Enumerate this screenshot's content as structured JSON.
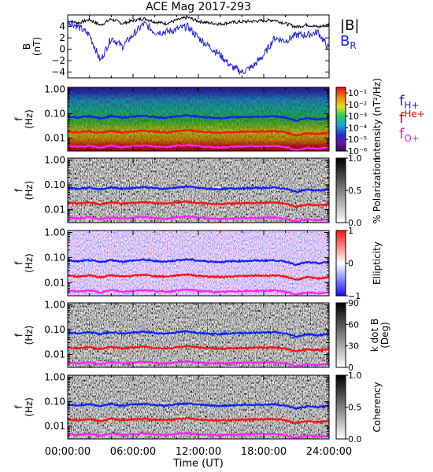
{
  "title": "ACE Mag 2017-293",
  "time_axis": {
    "label": "Time (UT)",
    "range_hours": [
      0,
      24
    ],
    "ticks": [
      {
        "value": 0,
        "label": "00:00:00"
      },
      {
        "value": 6,
        "label": "06:00:00"
      },
      {
        "value": 12,
        "label": "12:00:00"
      },
      {
        "value": 18,
        "label": "18:00:00"
      },
      {
        "value": 24,
        "label": "24:00:00"
      }
    ]
  },
  "legends": {
    "field": [
      {
        "label": "|B|",
        "color": "#000000"
      },
      {
        "label": "B",
        "sub": "R",
        "color": "#2020e0"
      }
    ],
    "freq": [
      {
        "label": "f",
        "sub": "H+",
        "color": "#2020e0"
      },
      {
        "label": "f",
        "sup": "He+",
        "color": "#e00000"
      },
      {
        "label": "f",
        "sub": "O+",
        "color": "#e020e0"
      }
    ]
  },
  "colors": {
    "gyro_h": "#1020ff",
    "gyro_he": "#ff1010",
    "gyro_o": "#ff20ff",
    "b_mag": "#000000",
    "b_r": "#2020e0"
  },
  "chart_data": [
    {
      "type": "line",
      "panel": "B",
      "ylabel_lines": [
        "B",
        "(nT)"
      ],
      "ylim": [
        -5,
        6
      ],
      "yticks": [
        {
          "value": -4,
          "label": "−4"
        },
        {
          "value": -2,
          "label": "−2"
        },
        {
          "value": 0,
          "label": "0"
        },
        {
          "value": 2,
          "label": "2"
        },
        {
          "value": 4,
          "label": "4"
        }
      ],
      "x": [
        0,
        1,
        2,
        3,
        4,
        5,
        6,
        7,
        8,
        9,
        10,
        11,
        12,
        13,
        14,
        15,
        16,
        17,
        18,
        19,
        20,
        21,
        22,
        23,
        24
      ],
      "series": [
        {
          "name": "|B|",
          "color": "#000000",
          "values": [
            5.0,
            4.6,
            5.2,
            4.2,
            5.3,
            4.5,
            5.0,
            5.4,
            4.8,
            4.5,
            5.1,
            5.6,
            4.9,
            4.6,
            4.4,
            4.7,
            4.8,
            4.9,
            5.0,
            5.1,
            4.5,
            3.9,
            4.3,
            3.9,
            4.3
          ]
        },
        {
          "name": "B",
          "name_sub": "R",
          "color": "#2020e0",
          "values": [
            4.8,
            3.9,
            2.5,
            -2.0,
            2.0,
            0.5,
            2.5,
            4.5,
            3.0,
            3.0,
            3.5,
            4.0,
            2.0,
            0.5,
            -1.0,
            -3.0,
            -4.0,
            -3.0,
            -1.0,
            2.0,
            1.5,
            2.5,
            2.5,
            3.0,
            0.0
          ]
        }
      ]
    },
    {
      "type": "heatmap",
      "panel": "Intensity spectrogram",
      "ylabel_lines": [
        "f",
        "(Hz)"
      ],
      "yscale": "log",
      "ylim": [
        0.003,
        1.2
      ],
      "yticks": [
        {
          "value": 0.01,
          "label": "0.01"
        },
        {
          "value": 0.1,
          "label": "0.10"
        },
        {
          "value": 1,
          "label": "1.00"
        }
      ],
      "colorbar": {
        "label": "Intensity (nT²/Hz)",
        "scale": "log",
        "range": [
          1e-06,
          0.3
        ],
        "ticks": [
          {
            "value": 0.1,
            "label": "10⁻¹"
          },
          {
            "value": 0.01,
            "label": "10⁻²"
          },
          {
            "value": 0.001,
            "label": "10⁻³"
          },
          {
            "value": 0.0001,
            "label": "10⁻⁴"
          },
          {
            "value": 1e-05,
            "label": "10⁻⁵"
          },
          {
            "value": 1e-06,
            "label": "10⁻⁶"
          }
        ],
        "colormap": "rainbow"
      }
    },
    {
      "type": "heatmap",
      "panel": "% Polarization",
      "ylabel_lines": [
        "f",
        "(Hz)"
      ],
      "yscale": "log",
      "ylim": [
        0.003,
        1.2
      ],
      "yticks": [
        {
          "value": 0.01,
          "label": "0.01"
        },
        {
          "value": 0.1,
          "label": "0.10"
        },
        {
          "value": 1,
          "label": "1.00"
        }
      ],
      "colorbar": {
        "label": "% Polarization",
        "range": [
          0,
          1
        ],
        "ticks": [
          {
            "value": 0,
            "label": "0.0"
          },
          {
            "value": 0.5,
            "label": "0.5"
          },
          {
            "value": 1,
            "label": "1.0"
          }
        ],
        "colormap": "gray_reversed"
      }
    },
    {
      "type": "heatmap",
      "panel": "Ellipticity",
      "ylabel_lines": [
        "f",
        "(Hz)"
      ],
      "yscale": "log",
      "ylim": [
        0.003,
        1.2
      ],
      "yticks": [
        {
          "value": 0.01,
          "label": "0.01"
        },
        {
          "value": 0.1,
          "label": "0.10"
        },
        {
          "value": 1,
          "label": "1.00"
        }
      ],
      "colorbar": {
        "label": "Ellipticity",
        "range": [
          -1,
          1
        ],
        "ticks": [
          {
            "value": -1,
            "label": "−1"
          },
          {
            "value": 0,
            "label": "0"
          },
          {
            "value": 1,
            "label": "1"
          }
        ],
        "colormap": "blue_white_red"
      }
    },
    {
      "type": "heatmap",
      "panel": "k dot B",
      "ylabel_lines": [
        "f",
        "(Hz)"
      ],
      "yscale": "log",
      "ylim": [
        0.003,
        1.2
      ],
      "yticks": [
        {
          "value": 0.01,
          "label": "0.01"
        },
        {
          "value": 0.1,
          "label": "0.10"
        },
        {
          "value": 1,
          "label": "1.00"
        }
      ],
      "colorbar": {
        "label_lines": [
          "k dot B",
          "(Deg)"
        ],
        "range": [
          0,
          90
        ],
        "ticks": [
          {
            "value": 0,
            "label": "0"
          },
          {
            "value": 30,
            "label": "30"
          },
          {
            "value": 60,
            "label": "60"
          },
          {
            "value": 90,
            "label": "90"
          }
        ],
        "colormap": "gray_reversed"
      }
    },
    {
      "type": "heatmap",
      "panel": "Coherency",
      "ylabel_lines": [
        "f",
        "(Hz)"
      ],
      "yscale": "log",
      "ylim": [
        0.003,
        1.2
      ],
      "yticks": [
        {
          "value": 0.01,
          "label": "0.01"
        },
        {
          "value": 0.1,
          "label": "0.10"
        },
        {
          "value": 1,
          "label": "1.00"
        }
      ],
      "colorbar": {
        "label": "Coherency",
        "range": [
          0,
          1
        ],
        "ticks": [
          {
            "value": 0,
            "label": "0.0"
          },
          {
            "value": 0.5,
            "label": "0.5"
          },
          {
            "value": 1,
            "label": "1.0"
          }
        ],
        "colormap": "gray_reversed"
      }
    }
  ],
  "gyrofrequency_hz": {
    "x": [
      0,
      1,
      2,
      3,
      4,
      5,
      6,
      7,
      8,
      9,
      10,
      11,
      12,
      13,
      14,
      15,
      16,
      17,
      18,
      19,
      20,
      21,
      22,
      23,
      24
    ],
    "f_H": [
      0.076,
      0.07,
      0.079,
      0.065,
      0.08,
      0.069,
      0.076,
      0.082,
      0.073,
      0.069,
      0.078,
      0.085,
      0.075,
      0.07,
      0.067,
      0.071,
      0.073,
      0.075,
      0.076,
      0.078,
      0.069,
      0.052,
      0.065,
      0.059,
      0.066
    ],
    "f_He": [
      0.019,
      0.0175,
      0.0198,
      0.0163,
      0.02,
      0.0173,
      0.019,
      0.0205,
      0.0183,
      0.0173,
      0.0195,
      0.0213,
      0.0188,
      0.0175,
      0.0168,
      0.0178,
      0.0183,
      0.0188,
      0.019,
      0.0195,
      0.0173,
      0.013,
      0.0163,
      0.0148,
      0.0165
    ],
    "f_O": [
      0.0048,
      0.0044,
      0.0049,
      0.0041,
      0.005,
      0.0043,
      0.0048,
      0.0051,
      0.0046,
      0.0043,
      0.0049,
      0.0053,
      0.0047,
      0.0044,
      0.0042,
      0.0045,
      0.0046,
      0.0047,
      0.0048,
      0.0049,
      0.0043,
      0.0033,
      0.0041,
      0.0037,
      0.0041
    ]
  }
}
